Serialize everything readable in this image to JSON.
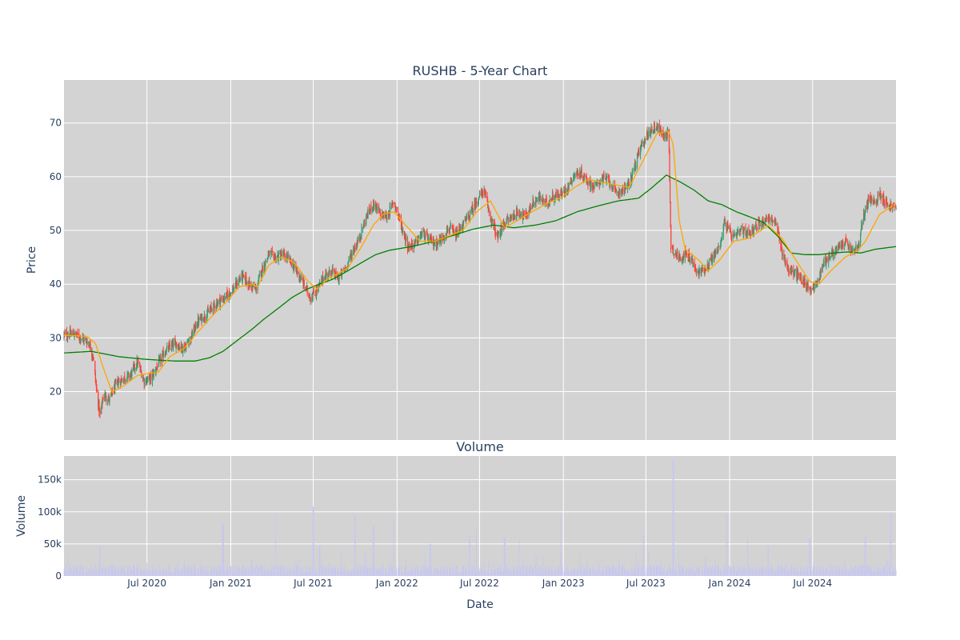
{
  "chart_data": [
    {
      "type": "candlestick",
      "title": "RUSHB - 5-Year Chart",
      "ylabel": "Price",
      "ylim": [
        11,
        78
      ],
      "yticks": [
        20,
        30,
        40,
        50,
        60,
        70
      ],
      "grid": true,
      "x_range": [
        "2020-01-01",
        "2024-12-31"
      ],
      "colors": {
        "up": "#3d9970",
        "down": "#ff4136",
        "ma_short": "#ffa500",
        "ma_long": "#008000",
        "background": "#d3d3d3"
      },
      "close_anchors": [
        [
          "2020-01-01",
          30.5
        ],
        [
          "2020-01-20",
          30.8
        ],
        [
          "2020-02-10",
          30.0
        ],
        [
          "2020-02-25",
          29.0
        ],
        [
          "2020-03-05",
          26.5
        ],
        [
          "2020-03-12",
          20.5
        ],
        [
          "2020-03-20",
          15.5
        ],
        [
          "2020-03-28",
          19.5
        ],
        [
          "2020-04-10",
          18.5
        ],
        [
          "2020-04-25",
          21.5
        ],
        [
          "2020-05-10",
          22.5
        ],
        [
          "2020-05-25",
          23.0
        ],
        [
          "2020-06-10",
          25.5
        ],
        [
          "2020-06-25",
          22.0
        ],
        [
          "2020-07-10",
          22.5
        ],
        [
          "2020-07-25",
          25.0
        ],
        [
          "2020-08-10",
          27.5
        ],
        [
          "2020-09-01",
          29.0
        ],
        [
          "2020-09-20",
          28.0
        ],
        [
          "2020-10-05",
          30.0
        ],
        [
          "2020-10-20",
          33.0
        ],
        [
          "2020-11-10",
          34.5
        ],
        [
          "2020-12-01",
          36.5
        ],
        [
          "2020-12-20",
          37.5
        ],
        [
          "2021-01-10",
          39.5
        ],
        [
          "2021-01-25",
          41.5
        ],
        [
          "2021-02-10",
          40.0
        ],
        [
          "2021-02-25",
          39.0
        ],
        [
          "2021-03-10",
          42.5
        ],
        [
          "2021-03-25",
          45.5
        ],
        [
          "2021-04-10",
          45.0
        ],
        [
          "2021-04-25",
          45.5
        ],
        [
          "2021-05-10",
          44.5
        ],
        [
          "2021-05-25",
          42.5
        ],
        [
          "2021-06-10",
          40.0
        ],
        [
          "2021-06-25",
          37.5
        ],
        [
          "2021-07-10",
          39.0
        ],
        [
          "2021-07-25",
          41.5
        ],
        [
          "2021-08-10",
          42.5
        ],
        [
          "2021-08-25",
          41.0
        ],
        [
          "2021-09-10",
          43.0
        ],
        [
          "2021-09-25",
          46.0
        ],
        [
          "2021-10-10",
          48.5
        ],
        [
          "2021-10-25",
          52.5
        ],
        [
          "2021-11-10",
          55.0
        ],
        [
          "2021-11-25",
          53.0
        ],
        [
          "2021-12-10",
          52.5
        ],
        [
          "2021-12-25",
          55.5
        ],
        [
          "2022-01-10",
          51.0
        ],
        [
          "2022-01-25",
          47.0
        ],
        [
          "2022-02-10",
          47.5
        ],
        [
          "2022-02-25",
          49.5
        ],
        [
          "2022-03-10",
          48.5
        ],
        [
          "2022-03-25",
          47.5
        ],
        [
          "2022-04-10",
          48.5
        ],
        [
          "2022-04-25",
          50.5
        ],
        [
          "2022-05-10",
          49.0
        ],
        [
          "2022-05-25",
          51.0
        ],
        [
          "2022-06-10",
          53.0
        ],
        [
          "2022-06-25",
          55.5
        ],
        [
          "2022-07-10",
          57.5
        ],
        [
          "2022-07-25",
          52.5
        ],
        [
          "2022-08-10",
          48.5
        ],
        [
          "2022-08-25",
          51.5
        ],
        [
          "2022-09-10",
          52.5
        ],
        [
          "2022-09-25",
          53.5
        ],
        [
          "2022-10-10",
          52.5
        ],
        [
          "2022-10-25",
          55.0
        ],
        [
          "2022-11-10",
          56.0
        ],
        [
          "2022-11-25",
          55.0
        ],
        [
          "2022-12-10",
          56.5
        ],
        [
          "2022-12-25",
          56.5
        ],
        [
          "2023-01-10",
          58.0
        ],
        [
          "2023-01-25",
          60.5
        ],
        [
          "2023-02-10",
          60.5
        ],
        [
          "2023-02-25",
          59.0
        ],
        [
          "2023-03-10",
          58.0
        ],
        [
          "2023-03-25",
          59.5
        ],
        [
          "2023-04-10",
          59.5
        ],
        [
          "2023-04-25",
          57.0
        ],
        [
          "2023-05-10",
          57.5
        ],
        [
          "2023-05-25",
          58.5
        ],
        [
          "2023-06-10",
          63.0
        ],
        [
          "2023-06-25",
          66.5
        ],
        [
          "2023-07-10",
          68.5
        ],
        [
          "2023-07-25",
          69.5
        ],
        [
          "2023-08-10",
          67.5
        ],
        [
          "2023-08-20",
          68.5
        ],
        [
          "2023-08-25",
          47.0
        ],
        [
          "2023-09-10",
          45.0
        ],
        [
          "2023-09-25",
          45.5
        ],
        [
          "2023-10-10",
          44.5
        ],
        [
          "2023-10-20",
          42.0
        ],
        [
          "2023-11-10",
          43.0
        ],
        [
          "2023-11-25",
          45.0
        ],
        [
          "2023-12-10",
          47.0
        ],
        [
          "2023-12-20",
          51.5
        ],
        [
          "2024-01-10",
          48.5
        ],
        [
          "2024-01-25",
          50.0
        ],
        [
          "2024-02-10",
          49.5
        ],
        [
          "2024-02-25",
          50.5
        ],
        [
          "2024-03-10",
          51.5
        ],
        [
          "2024-03-25",
          52.5
        ],
        [
          "2024-04-10",
          51.5
        ],
        [
          "2024-04-25",
          46.0
        ],
        [
          "2024-05-10",
          42.5
        ],
        [
          "2024-05-25",
          42.0
        ],
        [
          "2024-06-10",
          40.5
        ],
        [
          "2024-06-25",
          39.0
        ],
        [
          "2024-07-10",
          40.0
        ],
        [
          "2024-07-25",
          44.0
        ],
        [
          "2024-08-10",
          45.5
        ],
        [
          "2024-08-25",
          46.5
        ],
        [
          "2024-09-10",
          48.0
        ],
        [
          "2024-09-25",
          46.0
        ],
        [
          "2024-10-10",
          47.0
        ],
        [
          "2024-10-20",
          52.5
        ],
        [
          "2024-11-01",
          56.0
        ],
        [
          "2024-11-15",
          55.0
        ],
        [
          "2024-11-25",
          57.0
        ],
        [
          "2024-12-10",
          55.0
        ],
        [
          "2024-12-31",
          54.0
        ]
      ],
      "sma_short_anchors": [
        [
          "2020-01-01",
          30.5
        ],
        [
          "2020-02-20",
          30.3
        ],
        [
          "2020-03-10",
          29.0
        ],
        [
          "2020-03-25",
          25.0
        ],
        [
          "2020-04-15",
          20.0
        ],
        [
          "2020-05-10",
          21.0
        ],
        [
          "2020-06-10",
          23.0
        ],
        [
          "2020-07-10",
          23.5
        ],
        [
          "2020-07-25",
          23.5
        ],
        [
          "2020-08-20",
          26.5
        ],
        [
          "2020-09-20",
          28.0
        ],
        [
          "2020-10-20",
          31.0
        ],
        [
          "2020-11-20",
          34.0
        ],
        [
          "2020-12-20",
          36.5
        ],
        [
          "2021-01-20",
          39.5
        ],
        [
          "2021-02-15",
          40.0
        ],
        [
          "2021-03-01",
          39.5
        ],
        [
          "2021-03-25",
          43.5
        ],
        [
          "2021-04-20",
          45.0
        ],
        [
          "2021-05-10",
          44.5
        ],
        [
          "2021-05-25",
          43.5
        ],
        [
          "2021-06-20",
          40.5
        ],
        [
          "2021-07-10",
          39.0
        ],
        [
          "2021-08-01",
          41.0
        ],
        [
          "2021-08-25",
          42.0
        ],
        [
          "2021-09-15",
          43.0
        ],
        [
          "2021-10-15",
          47.0
        ],
        [
          "2021-11-10",
          51.0
        ],
        [
          "2021-12-01",
          53.0
        ],
        [
          "2021-12-25",
          53.5
        ],
        [
          "2022-01-25",
          50.5
        ],
        [
          "2022-02-20",
          48.0
        ],
        [
          "2022-03-25",
          48.0
        ],
        [
          "2022-04-25",
          49.0
        ],
        [
          "2022-05-25",
          50.0
        ],
        [
          "2022-06-25",
          53.5
        ],
        [
          "2022-07-25",
          55.5
        ],
        [
          "2022-08-25",
          50.5
        ],
        [
          "2022-09-25",
          52.0
        ],
        [
          "2022-10-25",
          53.5
        ],
        [
          "2022-11-25",
          55.0
        ],
        [
          "2022-12-25",
          56.0
        ],
        [
          "2023-01-25",
          58.0
        ],
        [
          "2023-02-25",
          59.5
        ],
        [
          "2023-03-25",
          59.0
        ],
        [
          "2023-04-25",
          58.5
        ],
        [
          "2023-05-25",
          58.0
        ],
        [
          "2023-06-25",
          63.0
        ],
        [
          "2023-07-25",
          68.0
        ],
        [
          "2023-08-20",
          68.5
        ],
        [
          "2023-08-30",
          66.0
        ],
        [
          "2023-09-12",
          52.0
        ],
        [
          "2023-09-25",
          46.5
        ],
        [
          "2023-10-25",
          44.5
        ],
        [
          "2023-11-15",
          42.5
        ],
        [
          "2023-12-10",
          44.5
        ],
        [
          "2024-01-10",
          48.0
        ],
        [
          "2024-02-10",
          48.5
        ],
        [
          "2024-03-10",
          50.0
        ],
        [
          "2024-03-25",
          51.0
        ],
        [
          "2024-04-25",
          48.5
        ],
        [
          "2024-05-25",
          44.5
        ],
        [
          "2024-06-25",
          40.5
        ],
        [
          "2024-07-15",
          40.0
        ],
        [
          "2024-08-10",
          42.5
        ],
        [
          "2024-09-10",
          45.0
        ],
        [
          "2024-10-10",
          46.5
        ],
        [
          "2024-10-25",
          48.0
        ],
        [
          "2024-11-25",
          53.0
        ],
        [
          "2024-12-31",
          55.0
        ]
      ],
      "sma_long_anchors": [
        [
          "2020-01-01",
          27.2
        ],
        [
          "2020-03-01",
          27.5
        ],
        [
          "2020-05-01",
          26.5
        ],
        [
          "2020-07-01",
          26.0
        ],
        [
          "2020-09-01",
          25.7
        ],
        [
          "2020-10-15",
          25.7
        ],
        [
          "2020-11-15",
          26.3
        ],
        [
          "2020-12-15",
          27.5
        ],
        [
          "2021-01-15",
          29.5
        ],
        [
          "2021-02-15",
          31.5
        ],
        [
          "2021-03-15",
          33.5
        ],
        [
          "2021-04-15",
          35.5
        ],
        [
          "2021-05-15",
          37.5
        ],
        [
          "2021-06-15",
          39.0
        ],
        [
          "2021-07-15",
          40.0
        ],
        [
          "2021-08-15",
          41.0
        ],
        [
          "2021-09-15",
          42.5
        ],
        [
          "2021-10-15",
          44.0
        ],
        [
          "2021-11-15",
          45.5
        ],
        [
          "2021-12-15",
          46.3
        ],
        [
          "2022-02-01",
          47.0
        ],
        [
          "2022-03-15",
          47.8
        ],
        [
          "2022-05-01",
          49.0
        ],
        [
          "2022-06-15",
          50.2
        ],
        [
          "2022-08-01",
          51.0
        ],
        [
          "2022-09-15",
          50.5
        ],
        [
          "2022-11-01",
          51.0
        ],
        [
          "2022-12-15",
          51.8
        ],
        [
          "2023-02-01",
          53.5
        ],
        [
          "2023-03-15",
          54.5
        ],
        [
          "2023-05-01",
          55.5
        ],
        [
          "2023-06-15",
          56.0
        ],
        [
          "2023-07-15",
          58.0
        ],
        [
          "2023-08-15",
          60.3
        ],
        [
          "2023-09-15",
          59.0
        ],
        [
          "2023-10-15",
          57.5
        ],
        [
          "2023-11-15",
          55.5
        ],
        [
          "2023-12-15",
          54.8
        ],
        [
          "2024-01-15",
          53.5
        ],
        [
          "2024-02-15",
          52.5
        ],
        [
          "2024-03-15",
          51.5
        ],
        [
          "2024-04-15",
          49.0
        ],
        [
          "2024-05-15",
          45.8
        ],
        [
          "2024-06-15",
          45.5
        ],
        [
          "2024-07-15",
          45.5
        ],
        [
          "2024-08-15",
          45.8
        ],
        [
          "2024-09-15",
          46.0
        ],
        [
          "2024-10-15",
          45.8
        ],
        [
          "2024-11-15",
          46.5
        ],
        [
          "2024-12-31",
          47.0
        ]
      ]
    },
    {
      "type": "bar",
      "title": "Volume",
      "ylabel": "Volume",
      "xlabel": "Date",
      "ylim": [
        0,
        187000
      ],
      "yticks": [
        0,
        50000,
        100000,
        150000
      ],
      "ytick_labels": [
        "0",
        "50k",
        "100k",
        "150k"
      ],
      "xticks": [
        "2020-07-01",
        "2021-01-01",
        "2021-07-01",
        "2022-01-01",
        "2022-07-01",
        "2023-01-01",
        "2023-07-01",
        "2024-01-01",
        "2024-07-01"
      ],
      "xtick_labels": [
        "Jul 2020",
        "Jan 2021",
        "Jul 2021",
        "Jan 2022",
        "Jul 2022",
        "Jan 2023",
        "Jul 2023",
        "Jan 2024",
        "Jul 2024"
      ],
      "grid": true,
      "colors": {
        "bar": "#c7c7f0",
        "background": "#d3d3d3"
      },
      "typical_volume": 12000,
      "volume_spikes": [
        [
          "2020-03-20",
          47000
        ],
        [
          "2020-09-20",
          27000
        ],
        [
          "2020-12-15",
          80000
        ],
        [
          "2021-02-15",
          25000
        ],
        [
          "2021-04-10",
          97000
        ],
        [
          "2021-07-01",
          108000
        ],
        [
          "2021-07-15",
          45000
        ],
        [
          "2021-10-01",
          95000
        ],
        [
          "2021-11-10",
          78000
        ],
        [
          "2021-12-25",
          90000
        ],
        [
          "2022-03-15",
          50000
        ],
        [
          "2022-06-10",
          65000
        ],
        [
          "2022-06-25",
          75000
        ],
        [
          "2022-08-25",
          60000
        ],
        [
          "2022-09-25",
          58000
        ],
        [
          "2022-12-25",
          97000
        ],
        [
          "2023-06-25",
          65000
        ],
        [
          "2023-08-30",
          181000
        ],
        [
          "2023-09-10",
          40000
        ],
        [
          "2023-11-10",
          30000
        ],
        [
          "2023-12-25",
          95000
        ],
        [
          "2024-02-10",
          58000
        ],
        [
          "2024-03-25",
          45000
        ],
        [
          "2024-06-25",
          60000
        ],
        [
          "2024-10-25",
          62000
        ],
        [
          "2024-12-20",
          97000
        ]
      ]
    }
  ]
}
